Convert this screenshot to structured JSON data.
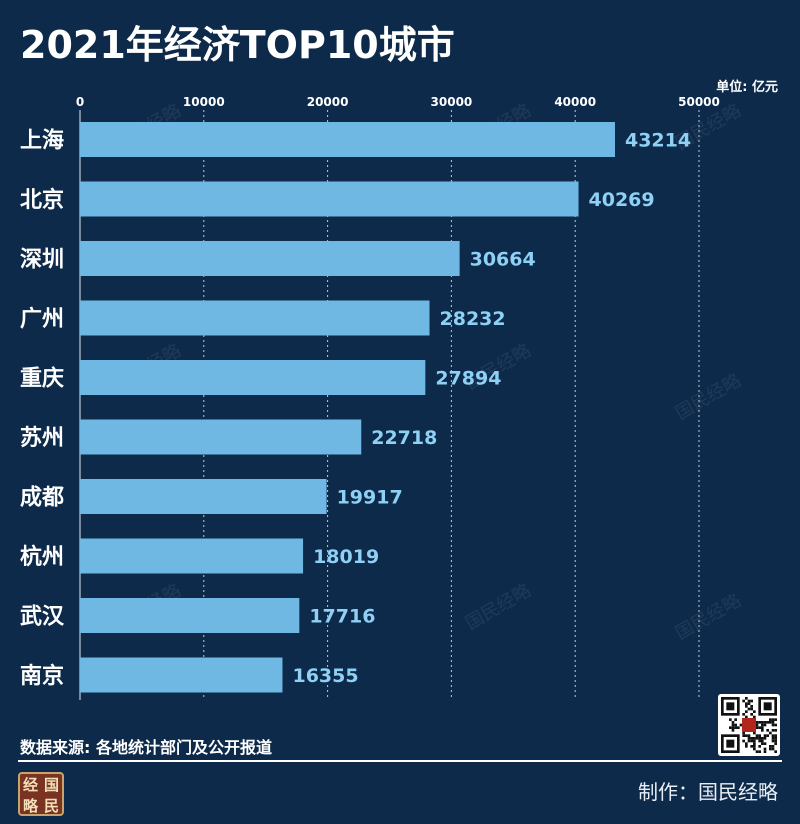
{
  "title": "2021年经济TOP10城市",
  "unit_label": "单位: 亿元",
  "source": "数据来源: 各地统计部门及公开报道",
  "credit": "制作：国民经略",
  "watermark": "国民经略",
  "logo_chars": [
    "经",
    "国",
    "略",
    "民"
  ],
  "colors": {
    "background": "#0d2a4a",
    "bar": "#6fb8e3",
    "value_label": "#8fd0f5",
    "grid": "#ffffff"
  },
  "chart_data": {
    "type": "bar",
    "orientation": "horizontal",
    "categories": [
      "上海",
      "北京",
      "深圳",
      "广州",
      "重庆",
      "苏州",
      "成都",
      "杭州",
      "武汉",
      "南京"
    ],
    "values": [
      43214,
      40269,
      30664,
      28232,
      27894,
      22718,
      19917,
      18019,
      17716,
      16355
    ],
    "xlim": [
      0,
      50000
    ],
    "xticks": [
      0,
      10000,
      20000,
      30000,
      40000,
      50000
    ],
    "grid": "vertical-dotted",
    "legend": "none"
  }
}
